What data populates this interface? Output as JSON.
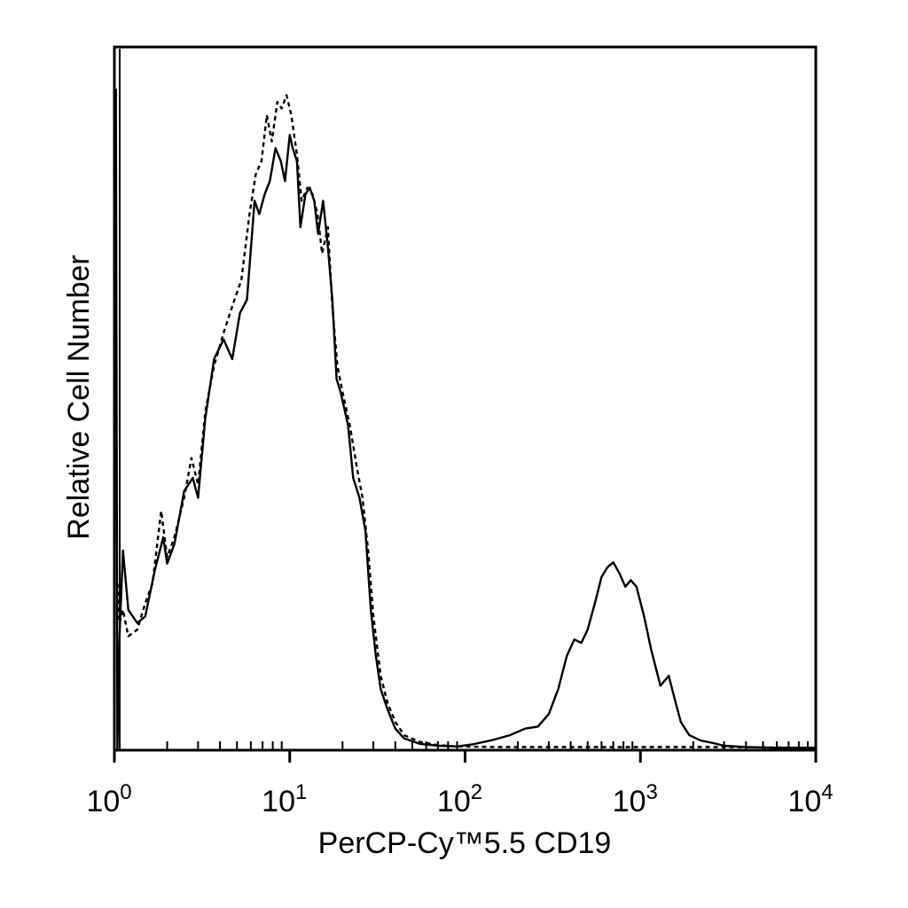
{
  "chart_data": {
    "type": "line",
    "xlabel": "PerCP-Cy™5.5 CD19",
    "ylabel": "Relative Cell Number",
    "x_scale": "log",
    "xlim": [
      1,
      10000
    ],
    "ylim": [
      0,
      100
    ],
    "y_ticks_shown": false,
    "grid": false,
    "legend": "none",
    "x_ticks": [
      {
        "base": "10",
        "exp": "0",
        "value": 1
      },
      {
        "base": "10",
        "exp": "1",
        "value": 10
      },
      {
        "base": "10",
        "exp": "2",
        "value": 100
      },
      {
        "base": "10",
        "exp": "3",
        "value": 1000
      },
      {
        "base": "10",
        "exp": "4",
        "value": 10000
      }
    ],
    "series": [
      {
        "style": "solid",
        "color": "#000000",
        "points": [
          [
            1.02,
            100
          ],
          [
            1.04,
            0
          ],
          [
            1.07,
            17
          ],
          [
            1.12,
            30
          ],
          [
            1.2,
            21
          ],
          [
            1.35,
            19
          ],
          [
            1.5,
            20
          ],
          [
            1.7,
            27
          ],
          [
            1.9,
            32
          ],
          [
            2.0,
            28
          ],
          [
            2.2,
            31
          ],
          [
            2.5,
            39
          ],
          [
            2.8,
            41
          ],
          [
            3.0,
            38
          ],
          [
            3.3,
            50
          ],
          [
            3.7,
            59
          ],
          [
            4.2,
            62
          ],
          [
            4.7,
            59
          ],
          [
            5.2,
            66
          ],
          [
            5.7,
            68
          ],
          [
            6.3,
            83
          ],
          [
            6.7,
            81
          ],
          [
            7.2,
            84
          ],
          [
            7.7,
            86
          ],
          [
            8.3,
            91
          ],
          [
            8.9,
            89
          ],
          [
            9.4,
            86
          ],
          [
            10.0,
            93
          ],
          [
            10.4,
            91
          ],
          [
            11.0,
            89
          ],
          [
            11.5,
            79
          ],
          [
            12.3,
            84
          ],
          [
            13.0,
            85
          ],
          [
            13.8,
            83
          ],
          [
            14.5,
            78
          ],
          [
            15.5,
            83
          ],
          [
            16.5,
            76
          ],
          [
            17.5,
            68
          ],
          [
            18.5,
            56
          ],
          [
            19.5,
            54
          ],
          [
            21.5,
            49
          ],
          [
            23,
            41
          ],
          [
            25,
            38
          ],
          [
            27,
            33
          ],
          [
            29,
            21
          ],
          [
            31,
            14
          ],
          [
            33,
            9
          ],
          [
            36,
            6
          ],
          [
            40,
            3
          ],
          [
            45,
            1.5
          ],
          [
            55,
            0.7
          ],
          [
            70,
            0.4
          ],
          [
            90,
            0.3
          ],
          [
            110,
            0.6
          ],
          [
            140,
            1.2
          ],
          [
            180,
            2.0
          ],
          [
            220,
            3.0
          ],
          [
            260,
            3.3
          ],
          [
            300,
            5.2
          ],
          [
            340,
            9
          ],
          [
            380,
            14
          ],
          [
            420,
            16.5
          ],
          [
            460,
            16
          ],
          [
            500,
            18
          ],
          [
            550,
            22
          ],
          [
            600,
            26
          ],
          [
            650,
            27.5
          ],
          [
            700,
            28.2
          ],
          [
            760,
            26.5
          ],
          [
            820,
            24.5
          ],
          [
            880,
            25.5
          ],
          [
            950,
            24.5
          ],
          [
            1050,
            20
          ],
          [
            1150,
            15
          ],
          [
            1300,
            9.5
          ],
          [
            1450,
            11
          ],
          [
            1550,
            8
          ],
          [
            1700,
            4
          ],
          [
            1900,
            2
          ],
          [
            2200,
            1.2
          ],
          [
            2600,
            0.8
          ],
          [
            3000,
            0.4
          ],
          [
            4000,
            0.2
          ],
          [
            6000,
            0.1
          ],
          [
            10000,
            0.1
          ]
        ]
      },
      {
        "style": "dashed",
        "color": "#000000",
        "points": [
          [
            1.04,
            25
          ],
          [
            1.07,
            19
          ],
          [
            1.12,
            21
          ],
          [
            1.2,
            17
          ],
          [
            1.35,
            18
          ],
          [
            1.5,
            22
          ],
          [
            1.65,
            25
          ],
          [
            1.85,
            36
          ],
          [
            2.0,
            29
          ],
          [
            2.2,
            32
          ],
          [
            2.5,
            38
          ],
          [
            2.75,
            44
          ],
          [
            3.0,
            40
          ],
          [
            3.3,
            51
          ],
          [
            3.7,
            58
          ],
          [
            4.2,
            63
          ],
          [
            4.7,
            67
          ],
          [
            5.3,
            71
          ],
          [
            5.9,
            81
          ],
          [
            6.4,
            87
          ],
          [
            6.9,
            89
          ],
          [
            7.4,
            96
          ],
          [
            7.9,
            92
          ],
          [
            8.5,
            98
          ],
          [
            9.0,
            97
          ],
          [
            9.6,
            99
          ],
          [
            10.2,
            96
          ],
          [
            11.0,
            90
          ],
          [
            11.7,
            83
          ],
          [
            12.6,
            85
          ],
          [
            13.5,
            84
          ],
          [
            14.4,
            81
          ],
          [
            15.3,
            75
          ],
          [
            16.5,
            79
          ],
          [
            17.5,
            67
          ],
          [
            18.7,
            58
          ],
          [
            20,
            54
          ],
          [
            22,
            49
          ],
          [
            24,
            43
          ],
          [
            26,
            38
          ],
          [
            28,
            30
          ],
          [
            30,
            20
          ],
          [
            33,
            11
          ],
          [
            36,
            7
          ],
          [
            40,
            4
          ],
          [
            45,
            2
          ],
          [
            55,
            1
          ],
          [
            70,
            0.5
          ],
          [
            90,
            0.3
          ],
          [
            150,
            0.2
          ],
          [
            400,
            0.2
          ],
          [
            1000,
            0.2
          ],
          [
            3000,
            0.2
          ],
          [
            10000,
            0.1
          ]
        ]
      }
    ]
  }
}
